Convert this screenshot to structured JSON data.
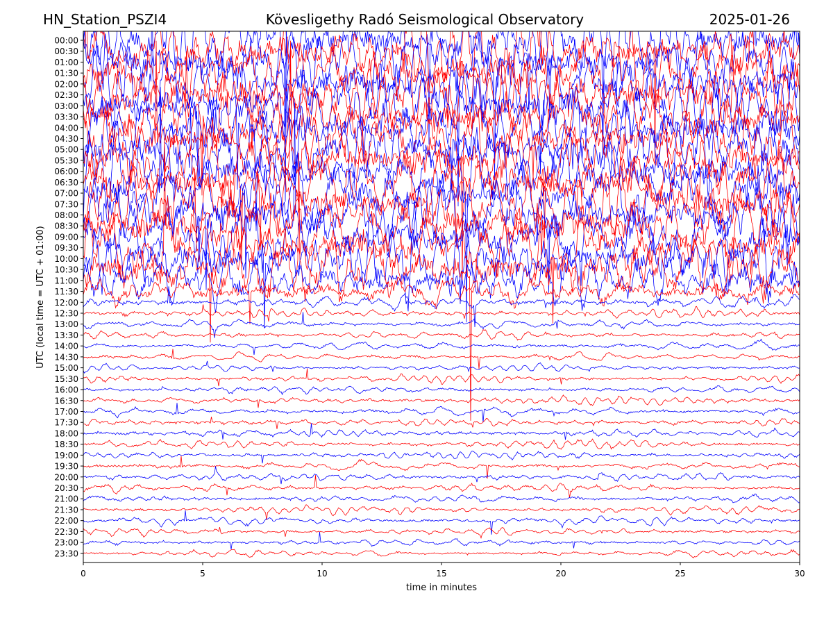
{
  "header": {
    "station": "HN_Station_PSZI4",
    "observatory": "Kövesligethy Radó Seismological Observatory",
    "date": "2025-01-26"
  },
  "chart_data": {
    "type": "line",
    "title": "Kövesligethy Radó Seismological Observatory",
    "xlabel": "time in minutes",
    "ylabel": "UTC (local time = UTC + 01:00)",
    "xlim": [
      0,
      30
    ],
    "x_ticks": [
      "0",
      "5",
      "10",
      "15",
      "20",
      "25",
      "30"
    ],
    "x_tick_values": [
      0,
      5,
      10,
      15,
      20,
      25,
      30
    ],
    "y_tick_labels": [
      "00:00",
      "00:30",
      "01:00",
      "01:30",
      "02:00",
      "02:30",
      "03:00",
      "03:30",
      "04:00",
      "04:30",
      "05:00",
      "05:30",
      "06:00",
      "06:30",
      "07:00",
      "07:30",
      "08:00",
      "08:30",
      "09:00",
      "09:30",
      "10:00",
      "10:30",
      "11:00",
      "11:30",
      "12:00",
      "12:30",
      "13:00",
      "13:30",
      "14:00",
      "14:30",
      "15:00",
      "15:30",
      "16:00",
      "16:30",
      "17:00",
      "17:30",
      "18:00",
      "18:30",
      "19:00",
      "19:30",
      "20:00",
      "20:30",
      "21:00",
      "21:30",
      "22:00",
      "22:30",
      "23:00",
      "23:30"
    ],
    "trace_colors": [
      "#0000ff",
      "#ff0000"
    ],
    "trace_amplitude_relative": [
      14,
      14,
      14,
      14,
      14,
      14,
      14,
      14,
      14,
      14,
      14,
      14,
      14,
      14,
      14,
      14,
      14,
      14,
      14,
      14,
      14,
      13,
      10,
      6,
      2.2,
      1.6,
      1.5,
      1.5,
      1.4,
      1.3,
      1.2,
      1.3,
      1.4,
      1.5,
      1.5,
      1.5,
      1.5,
      1.5,
      1.5,
      1.5,
      1.5,
      1.5,
      1.5,
      1.4,
      1.4,
      1.3,
      1.3,
      1.2
    ],
    "grid": false,
    "legend": "none"
  }
}
